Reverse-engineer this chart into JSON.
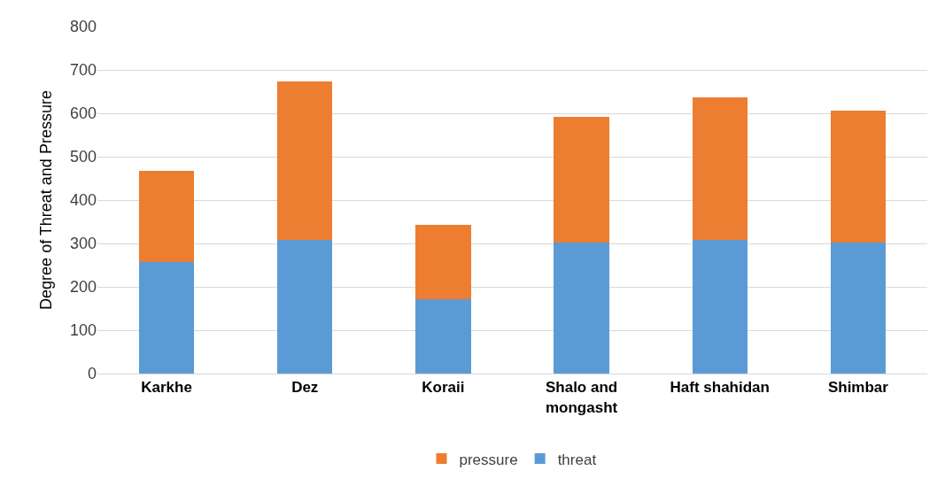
{
  "chart_data": {
    "type": "bar",
    "stacked": true,
    "ylabel": "Degree of Threat and Pressure",
    "categories": [
      "Karkhe",
      "Dez",
      "Koraii",
      "Shalo and mongasht",
      "Haft shahidan",
      "Shimbar"
    ],
    "series": [
      {
        "name": "threat",
        "color": "#5b9bd5",
        "values": [
          257,
          308,
          172,
          303,
          308,
          303
        ]
      },
      {
        "name": "pressure",
        "color": "#ed7d31",
        "values": [
          210,
          366,
          170,
          288,
          329,
          303
        ]
      }
    ],
    "ylim": [
      0,
      800
    ],
    "yticks": [
      0,
      100,
      200,
      300,
      400,
      500,
      600,
      700,
      800
    ],
    "grid": "y",
    "legend": "bottom"
  }
}
